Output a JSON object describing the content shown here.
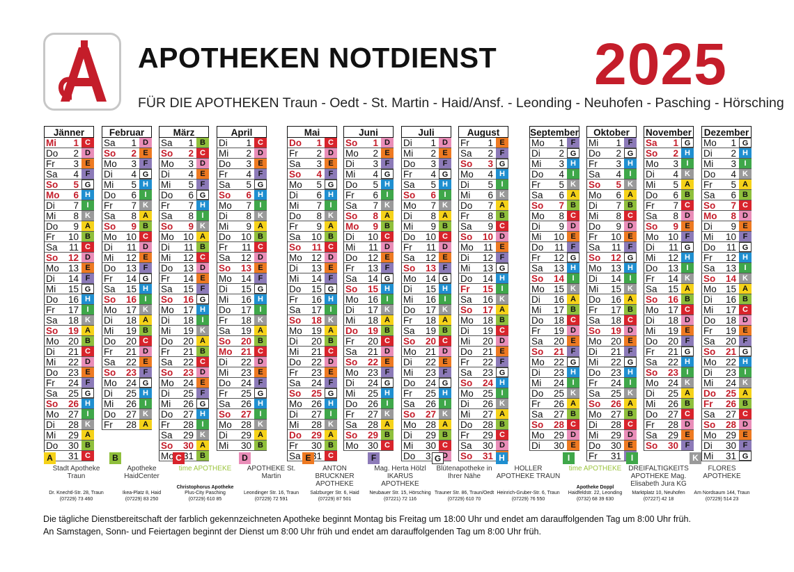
{
  "header": {
    "title": "APOTHEKEN NOTDIENST",
    "year": "2025",
    "subtitle": "FÜR DIE APOTHEKEN Traun - Oedt - St. Martin - Haid/Ansf. - Leonding - Neuhofen - Pasching - Hörsching"
  },
  "colors": {
    "A": "#f5d219",
    "B": "#8fbf3c",
    "C": "#d8242c",
    "D": "#e98db8",
    "E": "#ee7a22",
    "F": "#8c7ab8",
    "G": "#ffffff",
    "H": "#1f8fd0",
    "I": "#3fa74a",
    "K": "#9a9a9a",
    "accent": "#c41d2a"
  },
  "months": [
    {
      "name": "Jänner",
      "startDay": 2,
      "codes": "CDEFGHIKABCDEFGHIKABCDEFGHIKABC",
      "holidays": [
        1,
        5,
        6,
        12,
        19,
        26
      ]
    },
    {
      "name": "Februar",
      "startDay": 5,
      "codes": "DEFGHIKABCDEFGHIKABCDEFGHIKA",
      "holidays": [
        2,
        9,
        16,
        23
      ]
    },
    {
      "name": "März",
      "startDay": 5,
      "codes": "BCDEFGHIKABCDEFGHIKABCDEFGHIKAB",
      "holidays": [
        2,
        9,
        16,
        23,
        30
      ]
    },
    {
      "name": "April",
      "startDay": 1,
      "codes": "CDEFGHIKABCDEFGHIKABCDEFGHIKAB",
      "holidays": [
        6,
        13,
        20,
        21,
        27
      ]
    },
    {
      "name": "Mai",
      "startDay": 3,
      "codes": "CDEFGHIKABCDEFGHIKABCDEFGHIKABC",
      "holidays": [
        1,
        4,
        11,
        18,
        25,
        29
      ]
    },
    {
      "name": "Juni",
      "startDay": 6,
      "codes": "DEFGHIKABCDEFGHIKABCDEFGHIKABC",
      "holidays": [
        1,
        8,
        9,
        15,
        19,
        22,
        29
      ]
    },
    {
      "name": "Juli",
      "startDay": 1,
      "codes": "DEFGHIKABCDEFGHIKABCDEFGHIKABCD",
      "holidays": [
        6,
        13,
        20,
        27
      ]
    },
    {
      "name": "August",
      "startDay": 4,
      "codes": "EFGHIKABCDEFGHIKABCDEFGHIKABCDE",
      "holidays": [
        3,
        10,
        15,
        17,
        24,
        31
      ]
    },
    {
      "name": "September",
      "startDay": 0,
      "codes": "FGHIKABCDEFGHIKABCDEFGHIKABCDE",
      "holidays": [
        7,
        14,
        21,
        28
      ]
    },
    {
      "name": "Oktober",
      "startDay": 2,
      "codes": "FGHIKABCDEFGHIKABCDEFGHIKABCDEF",
      "holidays": [
        5,
        12,
        19,
        26
      ]
    },
    {
      "name": "November",
      "startDay": 5,
      "codes": "GHIKABCDEFGHIKABCDEFGHIKABCDEF",
      "holidays": [
        1,
        2,
        9,
        16,
        23,
        30
      ]
    },
    {
      "name": "Dezember",
      "startDay": 0,
      "codes": "GHIKABCDEFGHIKABCDEFGHIKABCDEFG",
      "holidays": [
        7,
        8,
        14,
        21,
        25,
        26,
        28
      ]
    }
  ],
  "dayAbbr": [
    "Mo",
    "Di",
    "Mi",
    "Do",
    "Fr",
    "Sa",
    "So"
  ],
  "pharmacies": [
    {
      "letter": "A",
      "logo": "Stadt Apotheke Traun",
      "name": "",
      "address": "Dr. Knechtl-Str. 28, Traun",
      "phone": "(07229) 73 460"
    },
    {
      "letter": "B",
      "logo": "Apotheke HaidCenter",
      "name": "",
      "address": "Ikea-Platz 8, Haid",
      "phone": "(07229) 83 250"
    },
    {
      "letter": "C",
      "logo": "time APOTHEKE",
      "name": "Christophorus Apotheke",
      "address": "Plus-City Pasching",
      "phone": "(07229) 610 85"
    },
    {
      "letter": "D",
      "logo": "APOTHEKE St. Martin",
      "name": "",
      "address": "Leondinger Str. 16, Traun",
      "phone": "(07229) 72 591"
    },
    {
      "letter": "E",
      "logo": "ANTON BRUCKNER APOTHEKE",
      "name": "",
      "address": "Salzburger Str. 6, Haid",
      "phone": "(07229) 87 501"
    },
    {
      "letter": "F",
      "logo": "Mag. Herta Hölzl IKARUS APOTHEKE",
      "name": "",
      "address": "Neubauer Str. 15, Hörsching",
      "phone": "(07221) 72 116"
    },
    {
      "letter": "G",
      "logo": "Blütenapotheke in Ihrer Nähe",
      "name": "",
      "address": "Trauner Str. 86, Traun/Oedt",
      "phone": "(07229) 610 70"
    },
    {
      "letter": "H",
      "logo": "HOLLER APOTHEKE TRAUN",
      "name": "",
      "address": "Heinrich-Gruber-Str. 6, Traun",
      "phone": "(07229) 76 550"
    },
    {
      "letter": "I",
      "logo": "time APOTHEKE",
      "name": "Apotheke Doppl",
      "address": "Haidfeldstr. 22, Leonding",
      "phone": "(0732) 68 39 630"
    },
    {
      "letter": "I",
      "logo": "DREIFALTIGKEITS APOTHEKE Mag. Elisabeth Jura KG",
      "name": "",
      "address": "Marktplatz 10, Neuhofen",
      "phone": "(07227) 42 18"
    },
    {
      "letter": "K",
      "logo": "FLORES APOTHEKE",
      "name": "",
      "address": "Am Nordsaum 144, Traun",
      "phone": "(07229) 514 23"
    }
  ],
  "footer": {
    "line1": "Die tägliche Dienstbereitschaft der farblich gekennzeichneten Apotheke beginnt Montag bis Freitag um 18:00 Uhr und endet am darauffolgenden Tag um 8:00 Uhr früh.",
    "line2": "An Samstagen, Sonn- und Feiertagen beginnt der Dienst um 8:00 Uhr früh und endet am darauffolgenden Tag um 8:00 Uhr früh."
  }
}
